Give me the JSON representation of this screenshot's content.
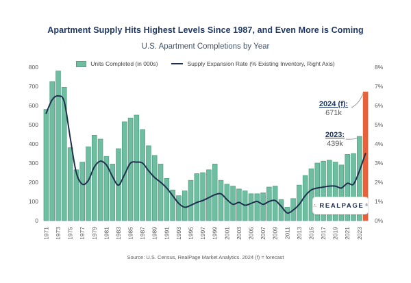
{
  "title": "Apartment Supply Hits Highest Levels Since 1987, and Even More is Coming",
  "subtitle": "U.S. Apartment Completions by Year",
  "legend": {
    "bars_label": "Units Completed (in 000s)",
    "line_label": "Supply Expansion Rate (% Existing Inventory, Right Axis)"
  },
  "annotations": {
    "forecast_label": "2024 (f):",
    "forecast_value": "671k",
    "latest_label": "2023:",
    "latest_value": "439k"
  },
  "source": "Source: U.S. Census, RealPage Market Analytics. 2024 (f) = forecast",
  "logo": {
    "text": "REALPAGE",
    "registered": "®"
  },
  "colors": {
    "bar": "#6FBEA1",
    "bar_stroke": "#4FA083",
    "forecast_bar": "#E8613D",
    "line": "#1E2F4D",
    "axis_text": "#595959",
    "title": "#1F3864",
    "arrow": "#9a9a9a"
  },
  "chart_data": {
    "type": "bar+line",
    "title": "U.S. Apartment Completions by Year",
    "left_axis": {
      "label": "Units Completed (in 000s)",
      "ylim": [
        0,
        800
      ],
      "tick_step": 100
    },
    "right_axis": {
      "label": "Supply Expansion Rate (% Existing Inventory)",
      "ylim": [
        0,
        8
      ],
      "tick_step": 1,
      "tick_suffix": "%"
    },
    "grid": false,
    "legend_position": "top",
    "x_tick_years": [
      1971,
      1973,
      1975,
      1977,
      1979,
      1981,
      1983,
      1985,
      1987,
      1989,
      1991,
      1993,
      1995,
      1997,
      1999,
      2001,
      2003,
      2005,
      2007,
      2009,
      2011,
      2013,
      2015,
      2017,
      2019,
      2021,
      2023
    ],
    "forecast_year": 2024,
    "years": [
      1971,
      1972,
      1973,
      1974,
      1975,
      1976,
      1977,
      1978,
      1979,
      1980,
      1981,
      1982,
      1983,
      1984,
      1985,
      1986,
      1987,
      1988,
      1989,
      1990,
      1991,
      1992,
      1993,
      1994,
      1995,
      1996,
      1997,
      1998,
      1999,
      2000,
      2001,
      2002,
      2003,
      2004,
      2005,
      2006,
      2007,
      2008,
      2009,
      2010,
      2011,
      2012,
      2013,
      2014,
      2015,
      2016,
      2017,
      2018,
      2019,
      2020,
      2021,
      2022,
      2023,
      2024
    ],
    "series": [
      {
        "name": "Units Completed (in 000s)",
        "type": "bar",
        "axis": "left",
        "values": [
          580,
          725,
          780,
          695,
          380,
          265,
          305,
          385,
          445,
          425,
          335,
          295,
          375,
          515,
          535,
          550,
          475,
          390,
          340,
          295,
          220,
          160,
          130,
          155,
          210,
          245,
          250,
          265,
          295,
          210,
          190,
          180,
          165,
          155,
          140,
          140,
          145,
          175,
          180,
          110,
          70,
          115,
          185,
          235,
          270,
          300,
          310,
          315,
          305,
          290,
          345,
          350,
          439,
          671
        ]
      },
      {
        "name": "Supply Expansion Rate (% Existing Inventory, Right Axis)",
        "type": "line",
        "axis": "right",
        "values": [
          5.6,
          6.3,
          6.5,
          6.2,
          4.3,
          2.5,
          1.9,
          2.1,
          2.8,
          3.1,
          2.9,
          2.3,
          1.85,
          2.4,
          3.0,
          3.05,
          3.0,
          2.6,
          2.25,
          2.0,
          1.7,
          1.3,
          0.9,
          0.7,
          0.8,
          0.95,
          1.05,
          1.2,
          1.35,
          1.4,
          1.1,
          0.85,
          0.95,
          0.8,
          0.9,
          1.0,
          0.85,
          1.0,
          1.05,
          0.75,
          0.4,
          0.55,
          0.85,
          1.3,
          1.6,
          1.7,
          1.75,
          1.8,
          1.8,
          1.7,
          1.95,
          1.9,
          2.6,
          3.5
        ]
      }
    ]
  }
}
